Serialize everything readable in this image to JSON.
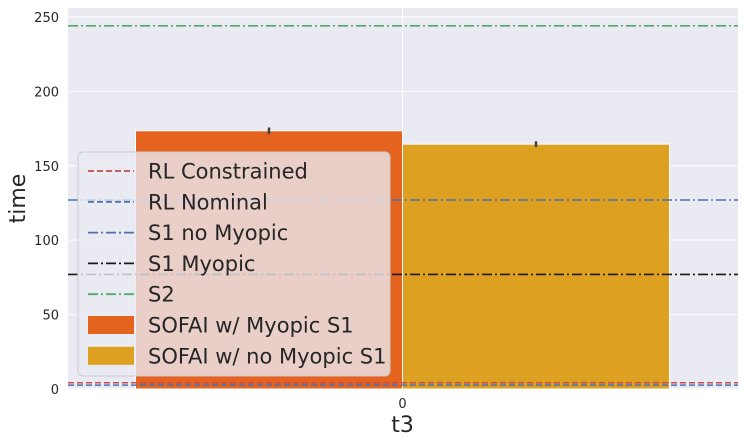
{
  "chart_data": {
    "type": "bar",
    "categories": [
      "0"
    ],
    "xlabel": "t3",
    "ylabel": "time",
    "ylim": [
      0,
      256
    ],
    "yticks": [
      0,
      50,
      100,
      150,
      200,
      250
    ],
    "grid": true,
    "legend_placement": "center-left",
    "background": "#eaeaf2",
    "series": [
      {
        "name": "SOFAI w/ Myopic S1",
        "values": [
          173.5
        ],
        "error": [
          1.5
        ],
        "color": "#e4641f"
      },
      {
        "name": "SOFAI w/ no Myopic S1",
        "values": [
          164.5
        ],
        "error": [
          1.2
        ],
        "color": "#dea021"
      }
    ],
    "reference_lines": [
      {
        "name": "RL Constrained",
        "value": 4.2,
        "color": "#c44e52",
        "style": "dashed"
      },
      {
        "name": "RL Nominal",
        "value": 2.6,
        "color": "#4c72b0",
        "style": "dashed"
      },
      {
        "name": "S1 no Myopic",
        "value": 127,
        "color": "#4c72b0",
        "style": "dashdot"
      },
      {
        "name": "S1 Myopic",
        "value": 77,
        "color": "#1a1a1a",
        "style": "dashdot"
      },
      {
        "name": "S2",
        "value": 244,
        "color": "#55a868",
        "style": "dashdot"
      }
    ]
  }
}
